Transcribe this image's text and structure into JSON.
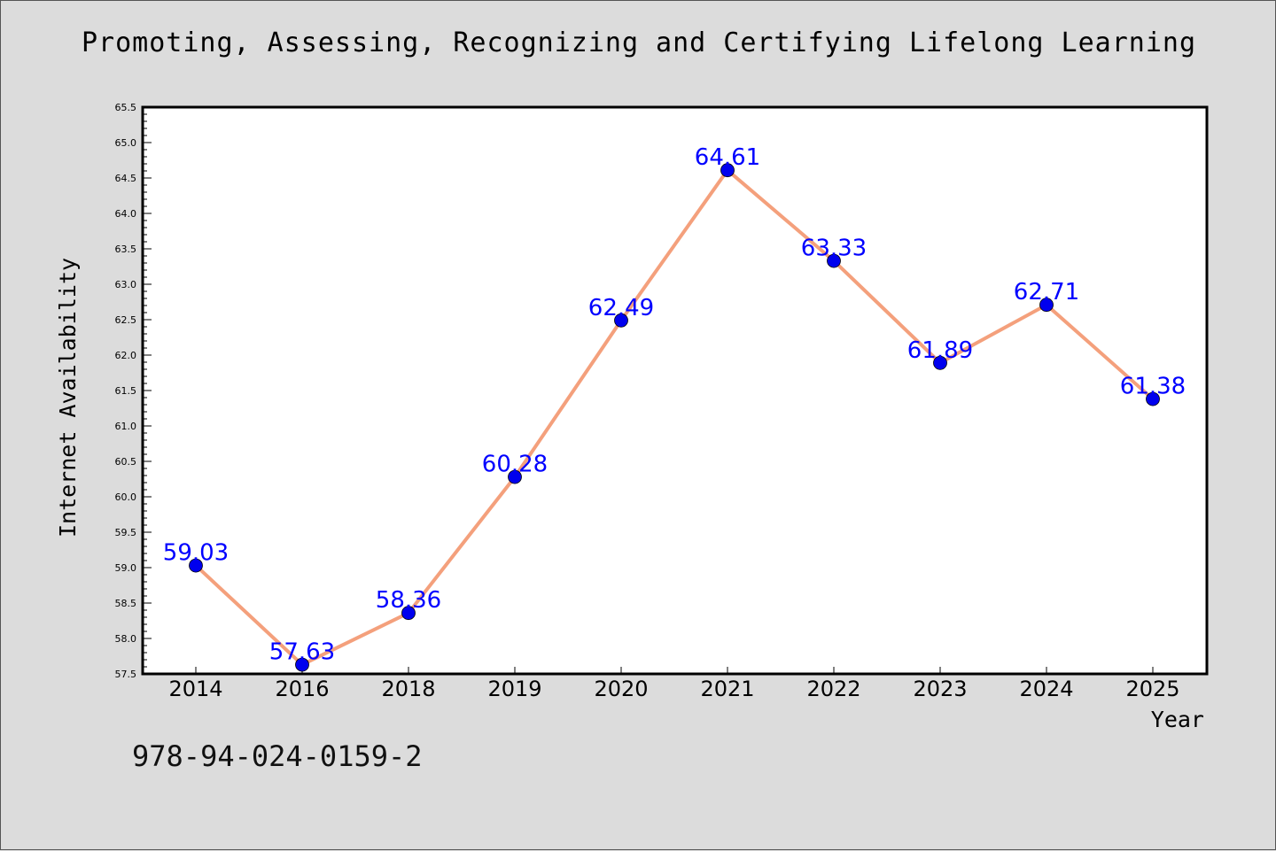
{
  "chart_data": {
    "type": "line",
    "title": "Promoting, Assessing, Recognizing and Certifying Lifelong Learning",
    "xlabel": "Year",
    "ylabel": "Internet Availability",
    "categories": [
      "2014",
      "2016",
      "2018",
      "2019",
      "2020",
      "2021",
      "2022",
      "2023",
      "2024",
      "2025"
    ],
    "series": [
      {
        "values": [
          59.03,
          57.63,
          58.36,
          60.28,
          62.49,
          64.61,
          63.33,
          61.89,
          62.71,
          61.38
        ],
        "labels": [
          "59.03",
          "57.63",
          "58.36",
          "60.28",
          "62.49",
          "64.61",
          "63.33",
          "61.89",
          "62.71",
          "61.38"
        ],
        "line_color": "#f4a07c",
        "marker_color": "#0000ee"
      }
    ],
    "ylim": [
      57.5,
      65.5
    ],
    "yticks": [
      "57.5",
      "58.0",
      "58.5",
      "59.0",
      "59.5",
      "60.0",
      "60.5",
      "61.0",
      "61.5",
      "62.0",
      "62.5",
      "63.0",
      "63.5",
      "64.0",
      "64.5",
      "65.0",
      "65.5"
    ],
    "grid": false,
    "legend": "none"
  },
  "footer": {
    "isbn": "978-94-024-0159-2"
  }
}
